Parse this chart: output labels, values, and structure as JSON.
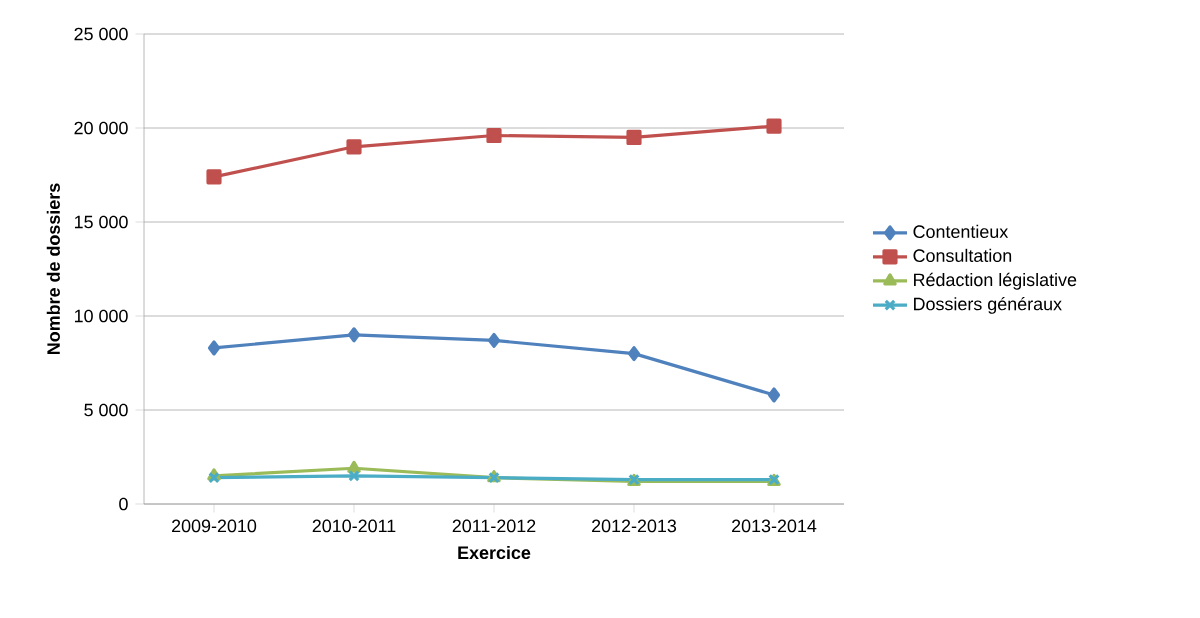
{
  "chart_data": {
    "type": "line",
    "xlabel": "Exercice",
    "ylabel": "Nombre de dossiers",
    "categories": [
      "2009-2010",
      "2010-2011",
      "2011-2012",
      "2012-2013",
      "2013-2014"
    ],
    "series": [
      {
        "name": "Contentieux",
        "color": "#4f81bd",
        "marker": "diamond",
        "values": [
          8300,
          9000,
          8700,
          8000,
          5800
        ]
      },
      {
        "name": "Consultation",
        "color": "#c0504d",
        "marker": "square",
        "values": [
          17400,
          19000,
          19600,
          19500,
          20100
        ]
      },
      {
        "name": "Rédaction législative",
        "color": "#9bbb59",
        "marker": "triangle",
        "values": [
          1500,
          1900,
          1400,
          1200,
          1200
        ]
      },
      {
        "name": "Dossiers généraux",
        "color": "#4bacc6",
        "marker": "cross",
        "values": [
          1400,
          1500,
          1400,
          1300,
          1300
        ]
      }
    ],
    "ylim": [
      0,
      25000
    ],
    "yticks": [
      {
        "value": 0,
        "label": "0"
      },
      {
        "value": 5000,
        "label": "5 000"
      },
      {
        "value": 10000,
        "label": "10 000"
      },
      {
        "value": 15000,
        "label": "15 000"
      },
      {
        "value": 20000,
        "label": "20 000"
      },
      {
        "value": 25000,
        "label": "25 000"
      }
    ],
    "grid": "y",
    "legend": "right",
    "line_style": "solid"
  }
}
